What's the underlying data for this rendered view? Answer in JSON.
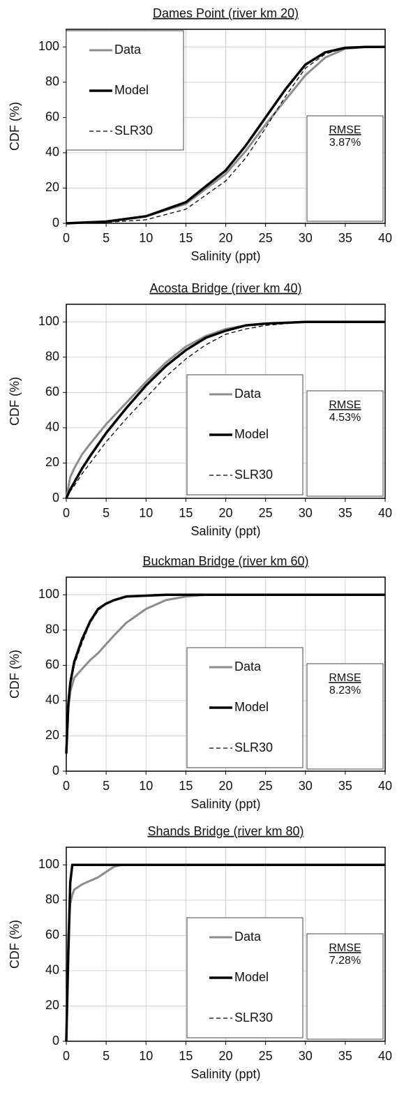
{
  "chart_data": [
    {
      "type": "line",
      "title": "Dames Point (river km 20)",
      "xlabel": "Salinity (ppt)",
      "ylabel": "CDF (%)",
      "xlim": [
        0,
        40
      ],
      "xticks": [
        0,
        5,
        10,
        15,
        20,
        25,
        30,
        35,
        40
      ],
      "ylim": [
        0,
        110
      ],
      "yticks": [
        0,
        20,
        40,
        60,
        80,
        100
      ],
      "grid": true,
      "legend": "upper left",
      "annotation": {
        "title": "RMSE",
        "text": "3.87%"
      },
      "x": [
        0,
        5,
        10,
        15,
        20,
        22.5,
        25,
        27.5,
        30,
        32.5,
        35,
        37.5,
        40
      ],
      "series": [
        {
          "name": "Data",
          "color": "#8c8c8c",
          "width": 3,
          "style": "solid",
          "values": [
            0,
            1,
            4,
            11,
            28,
            41,
            56,
            70,
            84,
            94,
            99,
            100,
            100
          ]
        },
        {
          "name": "Model",
          "color": "#000000",
          "width": 3.5,
          "style": "solid",
          "values": [
            0,
            1,
            4,
            12,
            30,
            44,
            60,
            76,
            90,
            97,
            99.5,
            100,
            100
          ]
        },
        {
          "name": "SLR30",
          "color": "#000000",
          "width": 1.3,
          "style": "dashed",
          "values": [
            0,
            0.5,
            2,
            8,
            24,
            37,
            54,
            72,
            88,
            96,
            99.5,
            100,
            100
          ]
        }
      ]
    },
    {
      "type": "line",
      "title": "Acosta Bridge (river km 40)",
      "xlabel": "Salinity (ppt)",
      "ylabel": "CDF (%)",
      "xlim": [
        0,
        40
      ],
      "xticks": [
        0,
        5,
        10,
        15,
        20,
        25,
        30,
        35,
        40
      ],
      "ylim": [
        0,
        110
      ],
      "yticks": [
        0,
        20,
        40,
        60,
        80,
        100
      ],
      "grid": true,
      "legend": "lower center",
      "annotation": {
        "title": "RMSE",
        "text": "4.53%"
      },
      "x": [
        0,
        0.5,
        1,
        2,
        3,
        5,
        7.5,
        10,
        12.5,
        15,
        17.5,
        20,
        22.5,
        25,
        30,
        35,
        40
      ],
      "series": [
        {
          "name": "Data",
          "color": "#8c8c8c",
          "width": 3,
          "style": "solid",
          "values": [
            0,
            12,
            17,
            25,
            31,
            42,
            54,
            66,
            77,
            86,
            92,
            96,
            98,
            99,
            100,
            100,
            100
          ]
        },
        {
          "name": "Model",
          "color": "#000000",
          "width": 3.5,
          "style": "solid",
          "values": [
            0,
            5,
            9,
            17,
            24,
            37,
            51,
            64,
            75,
            84,
            91,
            95,
            98,
            99,
            100,
            100,
            100
          ]
        },
        {
          "name": "SLR30",
          "color": "#000000",
          "width": 1.3,
          "style": "dashed",
          "values": [
            0,
            4,
            7,
            14,
            20,
            32,
            45,
            57,
            69,
            79,
            87,
            93,
            96,
            98,
            100,
            100,
            100
          ]
        }
      ]
    },
    {
      "type": "line",
      "title": "Buckman Bridge (river km 60)",
      "xlabel": "Salinity (ppt)",
      "ylabel": "CDF (%)",
      "xlim": [
        0,
        40
      ],
      "xticks": [
        0,
        5,
        10,
        15,
        20,
        25,
        30,
        35,
        40
      ],
      "ylim": [
        0,
        110
      ],
      "yticks": [
        0,
        20,
        40,
        60,
        80,
        100
      ],
      "grid": true,
      "legend": "lower center",
      "annotation": {
        "title": "RMSE",
        "text": "8.23%"
      },
      "x": [
        0,
        0.25,
        0.5,
        1,
        2,
        3,
        4,
        5,
        6,
        7.5,
        10,
        12.5,
        15,
        17.5,
        20,
        30,
        40
      ],
      "series": [
        {
          "name": "Data",
          "color": "#8c8c8c",
          "width": 3,
          "style": "solid",
          "values": [
            10,
            35,
            45,
            53,
            58,
            63,
            67,
            72,
            77,
            84,
            92,
            97,
            99,
            100,
            100,
            100,
            100
          ]
        },
        {
          "name": "Model",
          "color": "#000000",
          "width": 3.5,
          "style": "solid",
          "values": [
            10,
            38,
            50,
            62,
            75,
            85,
            92,
            95,
            97,
            99,
            99.5,
            100,
            100,
            100,
            100,
            100,
            100
          ]
        },
        {
          "name": "SLR30",
          "color": "#000000",
          "width": 1.3,
          "style": "dashed",
          "values": [
            8,
            35,
            47,
            60,
            73,
            84,
            91,
            95,
            97,
            99,
            99.5,
            100,
            100,
            100,
            100,
            100,
            100
          ]
        }
      ]
    },
    {
      "type": "line",
      "title": "Shands Bridge (river km 80)",
      "xlabel": "Salinity (ppt)",
      "ylabel": "CDF (%)",
      "xlim": [
        0,
        40
      ],
      "xticks": [
        0,
        5,
        10,
        15,
        20,
        25,
        30,
        35,
        40
      ],
      "ylim": [
        0,
        110
      ],
      "yticks": [
        0,
        20,
        40,
        60,
        80,
        100
      ],
      "grid": true,
      "legend": "lower center",
      "annotation": {
        "title": "RMSE",
        "text": "7.28%"
      },
      "x": [
        0,
        0.25,
        0.5,
        0.75,
        1,
        2,
        3,
        4,
        5,
        6,
        7,
        10,
        20,
        40
      ],
      "series": [
        {
          "name": "Data",
          "color": "#8c8c8c",
          "width": 3,
          "style": "solid",
          "values": [
            0,
            60,
            78,
            83,
            86,
            89,
            91,
            93,
            96,
            99,
            100,
            100,
            100,
            100
          ]
        },
        {
          "name": "Model",
          "color": "#000000",
          "width": 3.5,
          "style": "solid",
          "values": [
            0,
            50,
            90,
            100,
            100,
            100,
            100,
            100,
            100,
            100,
            100,
            100,
            100,
            100
          ]
        },
        {
          "name": "SLR30",
          "color": "#000000",
          "width": 1.3,
          "style": "dashed",
          "values": [
            0,
            45,
            88,
            99.5,
            100,
            100,
            100,
            100,
            100,
            100,
            100,
            100,
            100,
            100
          ]
        }
      ]
    }
  ]
}
